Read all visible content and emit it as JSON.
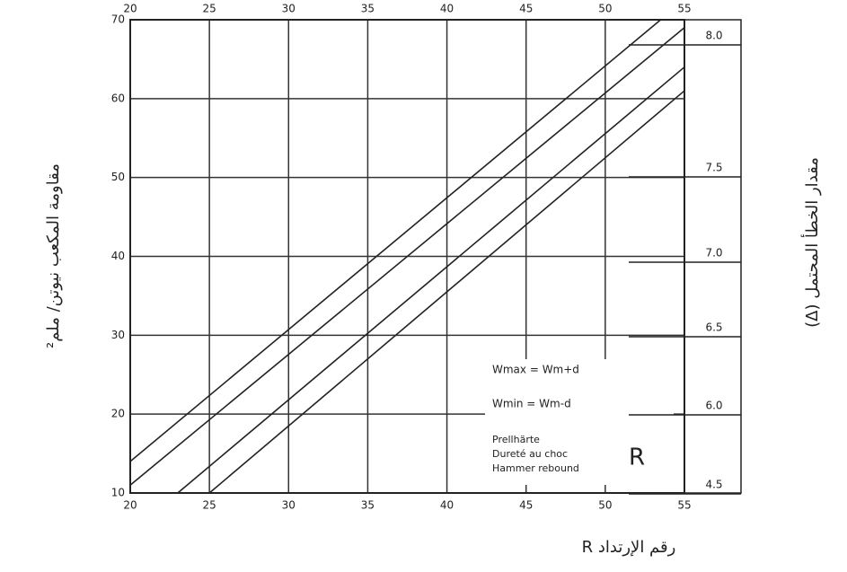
{
  "chart_data": {
    "type": "line",
    "y_label": "مقاومة المكعب نيوتن/ ملم²",
    "x_label": "رقم الإرتداد R",
    "y2_label": "مقدار الخطأ المحتمل (Δ)",
    "xlim": [
      20,
      55
    ],
    "xticks": [
      20,
      25,
      30,
      35,
      40,
      45,
      50,
      55
    ],
    "ylim": [
      10,
      70
    ],
    "yticks": [
      10,
      20,
      30,
      40,
      50,
      60,
      70
    ],
    "grid": true,
    "series": [
      {
        "name": "Wmax = Wm+d",
        "color": "#222222",
        "x": [
          20,
          53.5
        ],
        "values": [
          14,
          70
        ]
      },
      {
        "name": "Wm",
        "color": "#222222",
        "x": [
          20,
          55
        ],
        "values": [
          11,
          69
        ]
      },
      {
        "name": "Wmin = Wm-d",
        "color": "#222222",
        "x": [
          23,
          55
        ],
        "values": [
          10,
          64
        ]
      },
      {
        "name": "Wmin",
        "color": "#222222",
        "x": [
          25,
          55
        ],
        "values": [
          10,
          61
        ]
      }
    ],
    "legend": [
      "Wmax = Wm+d",
      "Wmin = Wm-d"
    ],
    "note": [
      "Prellhärte",
      "Dureté au choc",
      "Hammer rebound"
    ],
    "note_letter": "R",
    "right_labels": [
      "8.0",
      "7.5",
      "7.0",
      "6.5",
      "6.0",
      "4.5"
    ]
  }
}
